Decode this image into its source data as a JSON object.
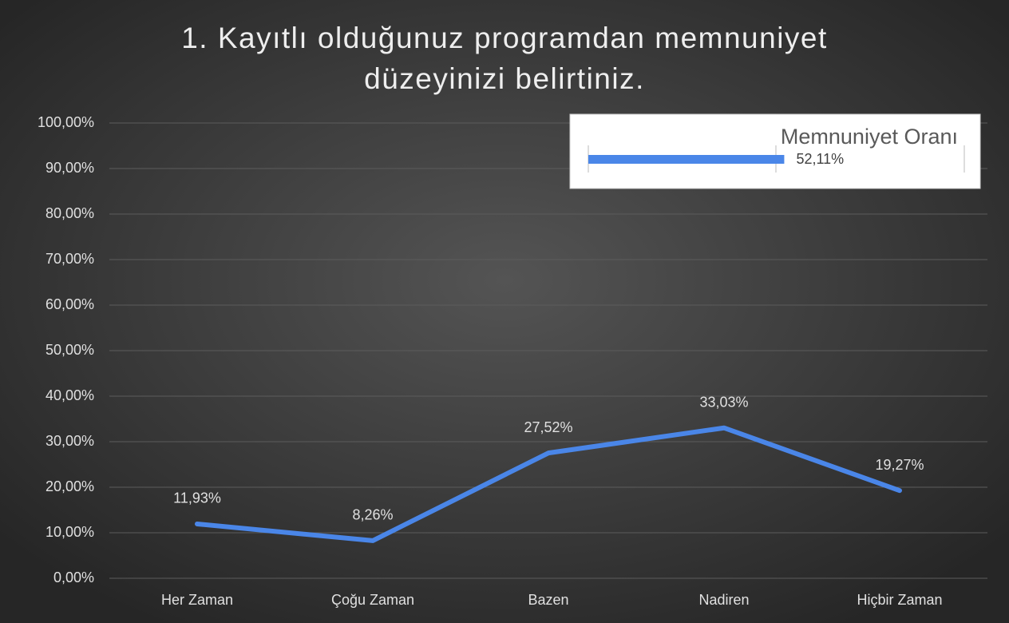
{
  "chart_data": {
    "type": "line",
    "title": [
      "1. Kayıtlı olduğunuz programdan memnuniyet",
      "düzeyinizi belirtiniz."
    ],
    "categories": [
      "Her Zaman",
      "Çoğu Zaman",
      "Bazen",
      "Nadiren",
      "Hiçbir Zaman"
    ],
    "series": [
      {
        "name": "Memnuniyet Oranı",
        "color": "#4a86e8",
        "values": [
          11.93,
          8.26,
          27.52,
          33.03,
          19.27
        ],
        "value_labels": [
          "11,93%",
          "8,26%",
          "27,52%",
          "33,03%",
          "19,27%"
        ]
      }
    ],
    "ylim": [
      0,
      100
    ],
    "yticks": [
      {
        "value": 0,
        "label": "0,00%"
      },
      {
        "value": 10,
        "label": "10,00%"
      },
      {
        "value": 20,
        "label": "20,00%"
      },
      {
        "value": 30,
        "label": "30,00%"
      },
      {
        "value": 40,
        "label": "40,00%"
      },
      {
        "value": 50,
        "label": "50,00%"
      },
      {
        "value": 60,
        "label": "60,00%"
      },
      {
        "value": 70,
        "label": "70,00%"
      },
      {
        "value": 80,
        "label": "80,00%"
      },
      {
        "value": 90,
        "label": "90,00%"
      },
      {
        "value": 100,
        "label": "100,00%"
      }
    ],
    "grid": true,
    "legend": "top-right",
    "legend_bar": {
      "value": 52.11,
      "value_label": "52,11%"
    }
  }
}
